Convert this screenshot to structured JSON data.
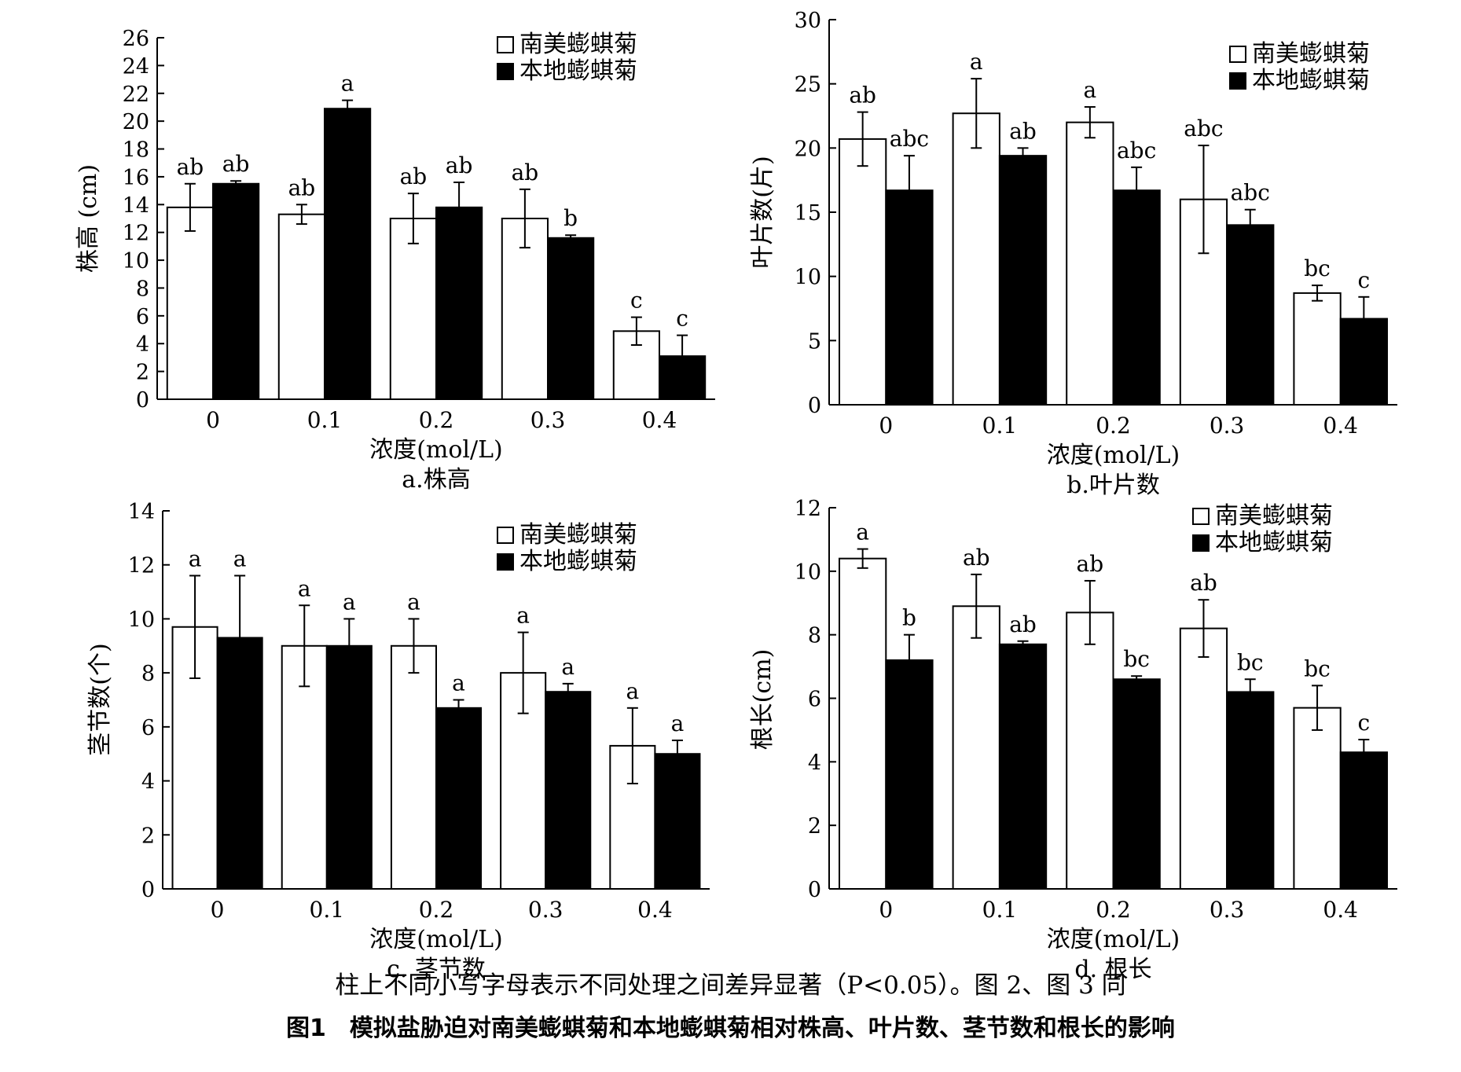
{
  "legend_labels": [
    "南美蟛蜞菊",
    "本地蟛蜞菊"
  ],
  "colors": {
    "series_1": "#ffffff",
    "series_2": "#000000",
    "ink": "#000000"
  },
  "chart_data": [
    {
      "type": "bar",
      "caption": "a.株高",
      "xlabel": "浓度(mol/L)",
      "ylabel": "株高 (cm)",
      "categories": [
        "0",
        "0.1",
        "0.2",
        "0.3",
        "0.4"
      ],
      "ylim": [
        0,
        26
      ],
      "yticks": [
        0,
        2,
        4,
        6,
        8,
        10,
        12,
        14,
        16,
        18,
        20,
        22,
        24,
        26
      ],
      "legend_position": "top-right",
      "series": [
        {
          "name": "南美蟛蜞菊",
          "values": [
            13.8,
            13.3,
            13.0,
            13.0,
            4.9
          ],
          "errors": [
            1.7,
            0.7,
            1.8,
            2.1,
            1.0
          ],
          "labels": [
            "ab",
            "ab",
            "ab",
            "ab",
            "c"
          ]
        },
        {
          "name": "本地蟛蜞菊",
          "values": [
            15.5,
            20.9,
            13.8,
            11.6,
            3.1
          ],
          "errors": [
            0.2,
            0.6,
            1.8,
            0.2,
            1.5
          ],
          "labels": [
            "ab",
            "a",
            "ab",
            "b",
            "c"
          ]
        }
      ]
    },
    {
      "type": "bar",
      "caption": "b.叶片数",
      "xlabel": "浓度(mol/L)",
      "ylabel": "叶片数(片)",
      "categories": [
        "0",
        "0.1",
        "0.2",
        "0.3",
        "0.4"
      ],
      "ylim": [
        0,
        30
      ],
      "yticks": [
        0,
        5,
        10,
        15,
        20,
        25,
        30
      ],
      "legend_position": "top-right",
      "series": [
        {
          "name": "南美蟛蜞菊",
          "values": [
            20.7,
            22.7,
            22.0,
            16.0,
            8.7
          ],
          "errors": [
            2.1,
            2.7,
            1.2,
            4.2,
            0.6
          ],
          "labels": [
            "ab",
            "a",
            "a",
            "abc",
            "bc"
          ]
        },
        {
          "name": "本地蟛蜞菊",
          "values": [
            16.7,
            19.4,
            16.7,
            14.0,
            6.7
          ],
          "errors": [
            2.7,
            0.6,
            1.8,
            1.2,
            1.7
          ],
          "labels": [
            "abc",
            "ab",
            "abc",
            "abc",
            "c"
          ]
        }
      ]
    },
    {
      "type": "bar",
      "caption": "c. 茎节数",
      "xlabel": "浓度(mol/L)",
      "ylabel": "茎节数(个)",
      "categories": [
        "0",
        "0.1",
        "0.2",
        "0.3",
        "0.4"
      ],
      "ylim": [
        0,
        14
      ],
      "yticks": [
        0,
        2,
        4,
        6,
        8,
        10,
        12,
        14
      ],
      "legend_position": "top-right",
      "series": [
        {
          "name": "南美蟛蜞菊",
          "values": [
            9.7,
            9.0,
            9.0,
            8.0,
            5.3
          ],
          "errors": [
            1.9,
            1.5,
            1.0,
            1.5,
            1.4
          ],
          "labels": [
            "a",
            "a",
            "a",
            "a",
            "a"
          ]
        },
        {
          "name": "本地蟛蜞菊",
          "values": [
            9.3,
            9.0,
            6.7,
            7.3,
            5.0
          ],
          "errors": [
            2.3,
            1.0,
            0.3,
            0.3,
            0.5
          ],
          "labels": [
            "a",
            "a",
            "a",
            "a",
            "a"
          ]
        }
      ]
    },
    {
      "type": "bar",
      "caption": "d. 根长",
      "xlabel": "浓度(mol/L)",
      "ylabel": "根长(cm)",
      "categories": [
        "0",
        "0.1",
        "0.2",
        "0.3",
        "0.4"
      ],
      "ylim": [
        0,
        12
      ],
      "yticks": [
        0,
        2,
        4,
        6,
        8,
        10,
        12
      ],
      "legend_position": "top-right",
      "series": [
        {
          "name": "南美蟛蜞菊",
          "values": [
            10.4,
            8.9,
            8.7,
            8.2,
            5.7
          ],
          "errors": [
            0.3,
            1.0,
            1.0,
            0.9,
            0.7
          ],
          "labels": [
            "a",
            "ab",
            "ab",
            "ab",
            "bc"
          ]
        },
        {
          "name": "本地蟛蜞菊",
          "values": [
            7.2,
            7.7,
            6.6,
            6.2,
            4.3
          ],
          "errors": [
            0.8,
            0.1,
            0.1,
            0.4,
            0.4
          ],
          "labels": [
            "b",
            "ab",
            "bc",
            "bc",
            "c"
          ]
        }
      ]
    }
  ],
  "caption_note": "柱上不同小写字母表示不同处理之间差异显著（P<0.05）。图 2、图 3 同",
  "caption_title": "图1　模拟盐胁迫对南美蟛蜞菊和本地蟛蜞菊相对株高、叶片数、茎节数和根长的影响"
}
